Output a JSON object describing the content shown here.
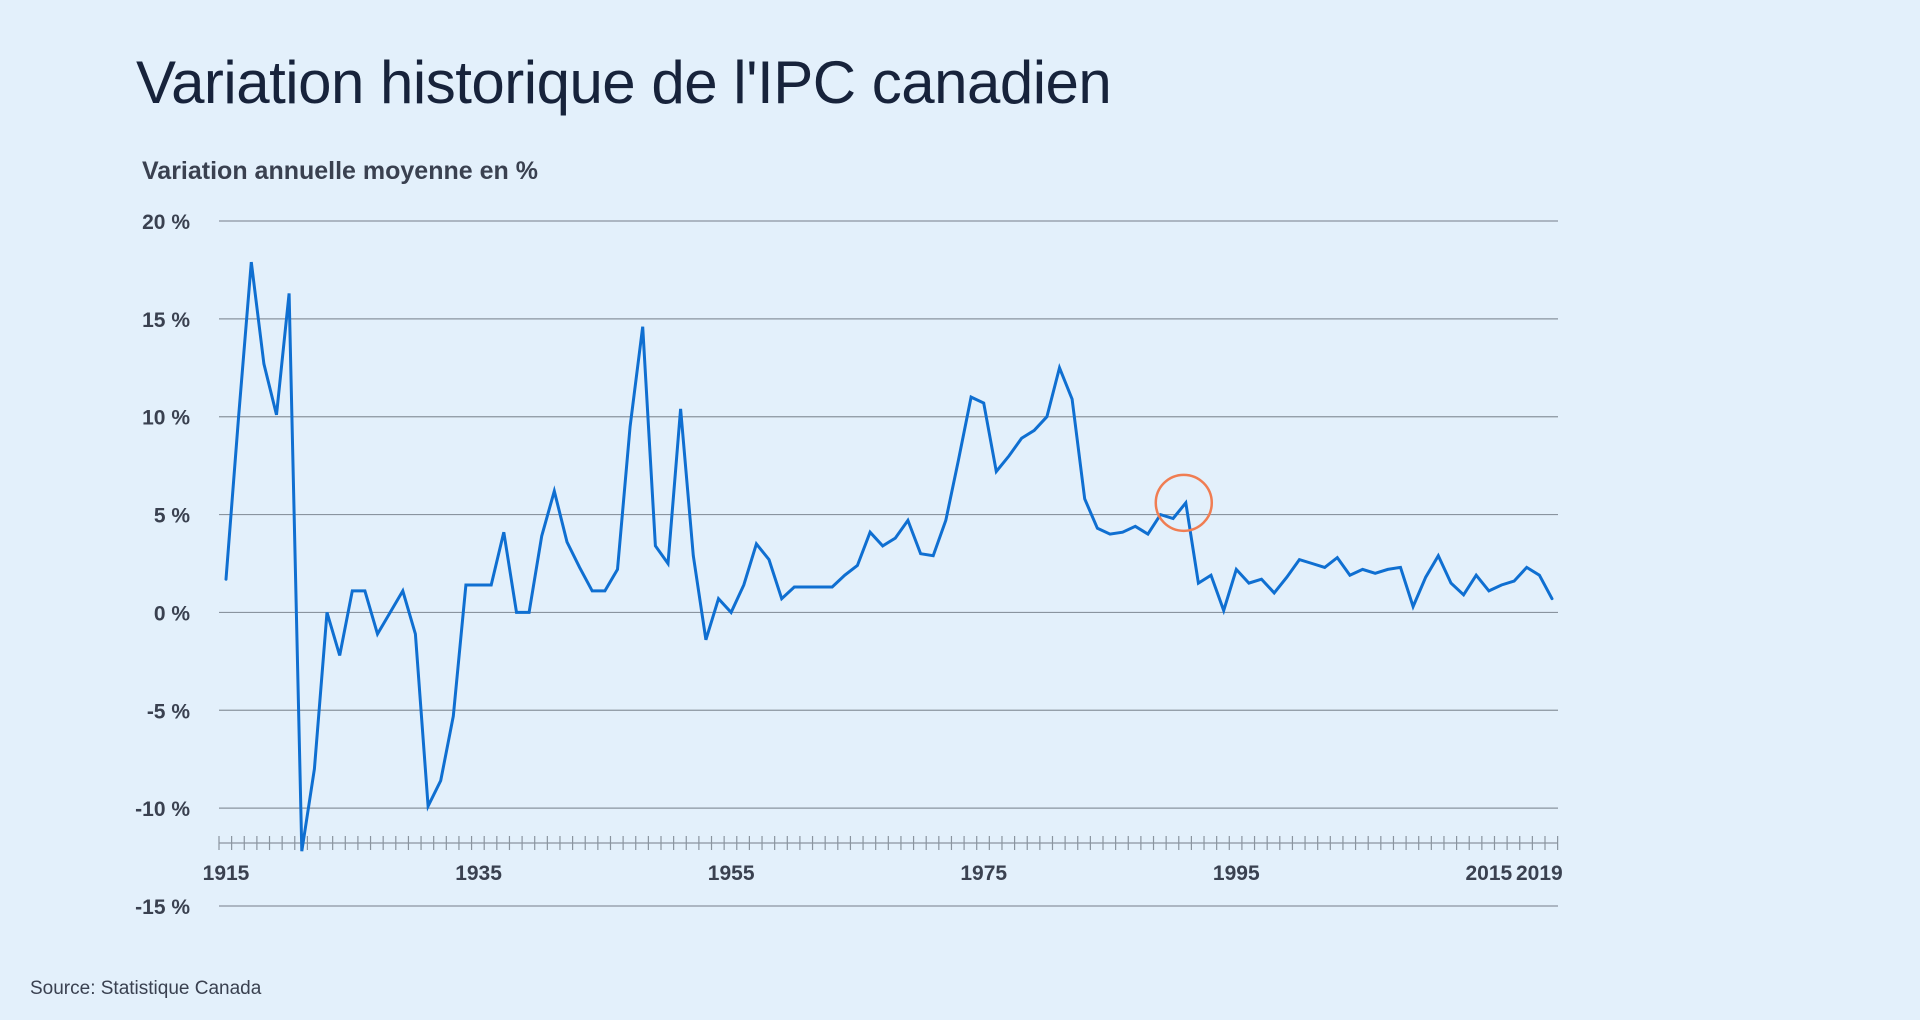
{
  "header": {
    "title": "Variation historique de l'IPC canadien",
    "subtitle": "Variation annuelle moyenne en %"
  },
  "footer": {
    "source": "Source: Statistique Canada"
  },
  "colors": {
    "background": "#e3f0fb",
    "line": "#0f6fd1",
    "grid": "#8a949f",
    "highlight": "#f07d52",
    "text": "#3a4150"
  },
  "chart_data": {
    "type": "line",
    "ylabel": "Variation annuelle moyenne en %",
    "ylim": [
      -15,
      20
    ],
    "yticks": [
      20,
      15,
      10,
      5,
      0,
      -5,
      -10,
      -15
    ],
    "ytick_labels": [
      "20 %",
      "15 %",
      "10 %",
      "5 %",
      "0 %",
      "-5 %",
      "-10 %",
      "-15 %"
    ],
    "xlim": [
      1915,
      2021
    ],
    "xticks": [
      1915,
      1935,
      1955,
      1975,
      1995,
      2015,
      2019
    ],
    "xtick_labels": [
      "1915",
      "1935",
      "1955",
      "1975",
      "1995",
      "2015",
      "2019"
    ],
    "grid": true,
    "series": [
      {
        "x": [
          1915,
          1916,
          1917,
          1918,
          1919,
          1920,
          1921,
          1922,
          1923,
          1924,
          1925,
          1926,
          1927,
          1928,
          1929,
          1930,
          1931,
          1932,
          1933,
          1934,
          1935,
          1936,
          1937,
          1938,
          1939,
          1940,
          1941,
          1942,
          1943,
          1944,
          1945,
          1946,
          1947,
          1948,
          1949,
          1950,
          1951,
          1952,
          1953,
          1954,
          1955,
          1956,
          1957,
          1958,
          1959,
          1960,
          1961,
          1962,
          1963,
          1964,
          1965,
          1966,
          1967,
          1968,
          1969,
          1970,
          1971,
          1972,
          1973,
          1974,
          1975,
          1976,
          1977,
          1978,
          1979,
          1980,
          1981,
          1982,
          1983,
          1984,
          1985,
          1986,
          1987,
          1988,
          1989,
          1990,
          1991,
          1992,
          1993,
          1994,
          1995,
          1996,
          1997,
          1998,
          1999,
          2000,
          2001,
          2002,
          2003,
          2004,
          2005,
          2006,
          2007,
          2008,
          2009,
          2010,
          2011,
          2012,
          2013,
          2014,
          2015,
          2016,
          2017,
          2018,
          2019,
          2020
        ],
        "values": [
          1.7,
          10.0,
          17.9,
          12.7,
          10.1,
          16.3,
          -12.2,
          -8.0,
          0.0,
          -2.2,
          1.1,
          1.1,
          -1.1,
          0.0,
          1.1,
          -1.1,
          -9.9,
          -8.6,
          -5.3,
          1.4,
          1.4,
          1.4,
          4.1,
          0.0,
          0.0,
          3.9,
          6.2,
          3.6,
          2.3,
          1.1,
          1.1,
          2.2,
          9.5,
          14.6,
          3.4,
          2.5,
          10.4,
          2.9,
          -1.4,
          0.7,
          0.0,
          1.4,
          3.5,
          2.7,
          0.7,
          1.3,
          1.3,
          1.3,
          1.3,
          1.9,
          2.4,
          4.1,
          3.4,
          3.8,
          4.7,
          3.0,
          2.9,
          4.7,
          7.8,
          11.0,
          10.7,
          7.2,
          8.0,
          8.9,
          9.3,
          10.0,
          12.5,
          10.9,
          5.8,
          4.3,
          4.0,
          4.1,
          4.4,
          4.0,
          5.0,
          4.8,
          5.6,
          1.5,
          1.9,
          0.1,
          2.2,
          1.5,
          1.7,
          1.0,
          1.8,
          2.7,
          2.5,
          2.3,
          2.8,
          1.9,
          2.2,
          2.0,
          2.2,
          2.3,
          0.3,
          1.8,
          2.9,
          1.5,
          0.9,
          1.9,
          1.1,
          1.4,
          1.6,
          2.3,
          1.9,
          0.7
        ]
      }
    ],
    "highlight_point": {
      "x": 1991,
      "y": 5.6
    }
  }
}
